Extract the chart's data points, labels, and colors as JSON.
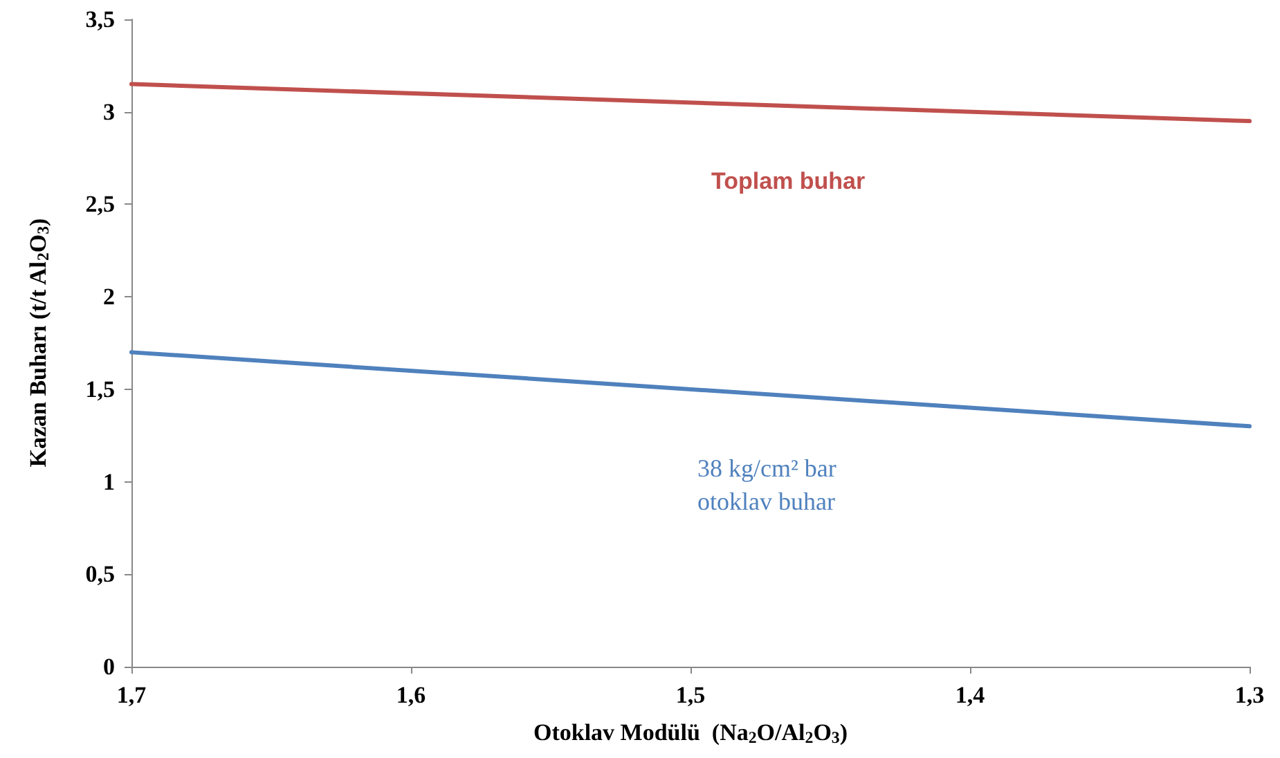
{
  "chart_data": {
    "type": "line",
    "xlabel": "Otoklav Modülü  (Na$_{2}$O/Al$_{2}$O$_{3}$)",
    "ylabel": "Kazan Buharı (t/t Al$_{2}$O$_{3}$)",
    "x": [
      1.7,
      1.3
    ],
    "series": [
      {
        "name": "Toplam buhar",
        "color": "#c0504d",
        "values": [
          3.15,
          2.95
        ]
      },
      {
        "name": "38 kg/cm² bar otoklav buhar",
        "color": "#4f81bd",
        "values": [
          1.7,
          1.3
        ]
      }
    ],
    "xlim": [
      1.7,
      1.3
    ],
    "xticks": [
      {
        "value": 1.7,
        "label": "1,7"
      },
      {
        "value": 1.6,
        "label": "1,6"
      },
      {
        "value": 1.5,
        "label": "1,5"
      },
      {
        "value": 1.4,
        "label": "1,4"
      },
      {
        "value": 1.3,
        "label": "1,3"
      }
    ],
    "ylim": [
      0,
      3.5
    ],
    "yticks": [
      0,
      {
        "value": 0.5,
        "label": "0,5"
      },
      1,
      {
        "value": 1.5,
        "label": "1,5"
      },
      2,
      {
        "value": 2.5,
        "label": "2,5"
      },
      3,
      {
        "value": 3.5,
        "label": "3,5"
      }
    ],
    "grid": false,
    "legend": false,
    "marker": "none",
    "line_style": "solid"
  }
}
